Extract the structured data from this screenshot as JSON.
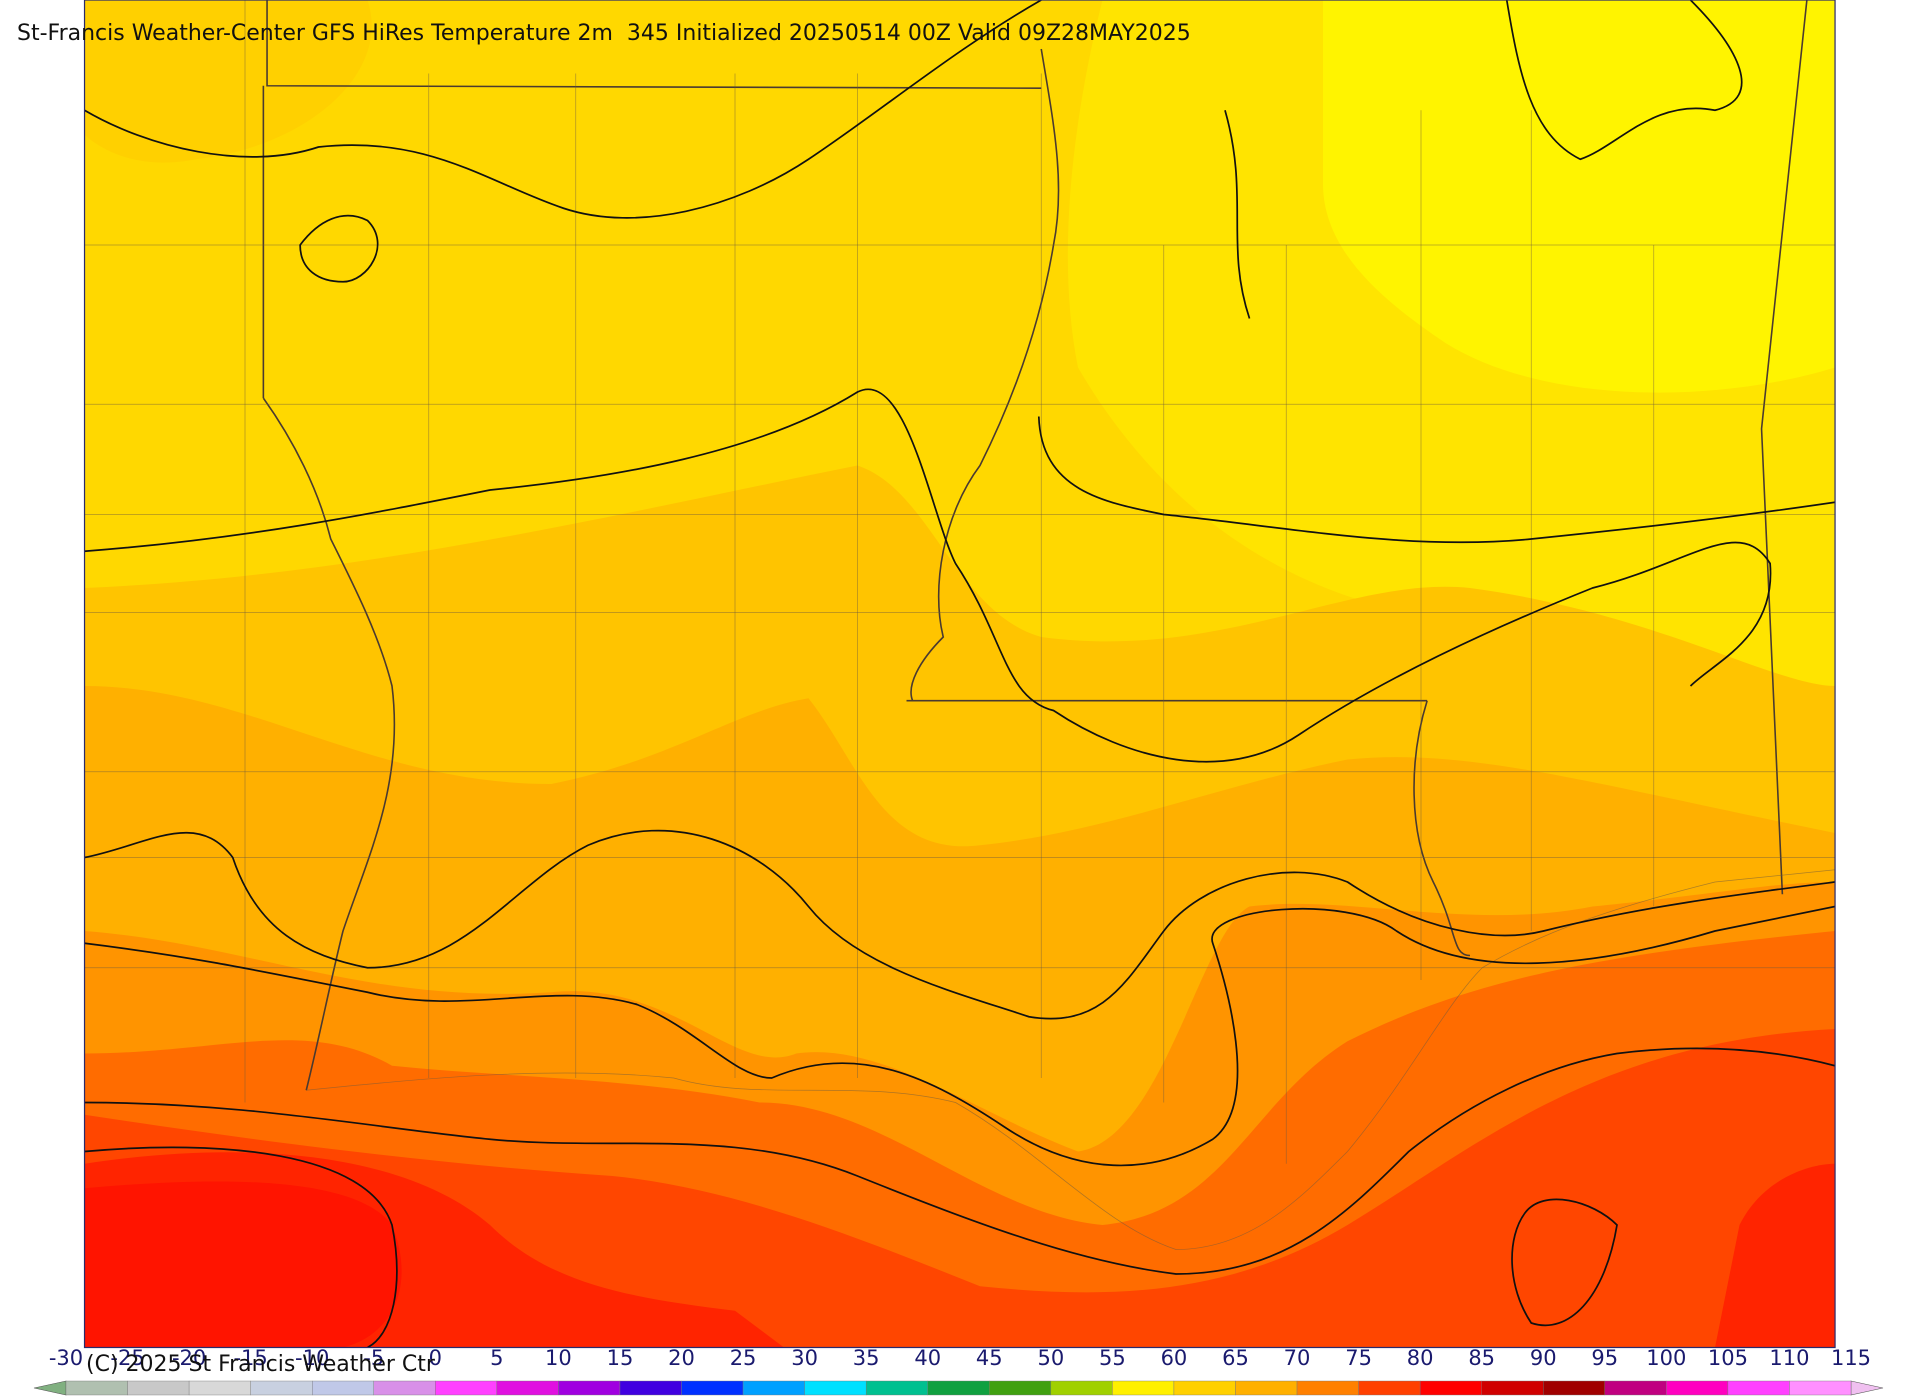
{
  "header": {
    "title": "St-Francis Weather-Center GFS HiRes Temperature 2m  345 Initialized 20250514 00Z Valid 09Z28MAY2025"
  },
  "footer": {
    "copyright": "(C) 2025 St Francis Weather Ctr"
  },
  "legend": {
    "ticks": [
      -30,
      -25,
      -20,
      -15,
      -10,
      -5,
      0,
      5,
      10,
      15,
      20,
      25,
      30,
      35,
      40,
      45,
      50,
      55,
      60,
      65,
      70,
      75,
      80,
      85,
      90,
      95,
      100,
      105,
      110,
      115
    ],
    "colors": [
      "#b0c0b0",
      "#c8c8c8",
      "#d8d8d8",
      "#c8d0e0",
      "#c0c8e8",
      "#d890e8",
      "#ff40ff",
      "#e010e0",
      "#a000e0",
      "#4000e0",
      "#0030ff",
      "#00a0ff",
      "#00e0ff",
      "#00c090",
      "#10a040",
      "#40a010",
      "#a0d000",
      "#fff000",
      "#ffd000",
      "#ffb000",
      "#ff8000",
      "#ff4000",
      "#ff0000",
      "#d00000",
      "#a00000",
      "#c00080",
      "#ff00c0",
      "#ff40ff",
      "#ff90ff"
    ]
  }
}
